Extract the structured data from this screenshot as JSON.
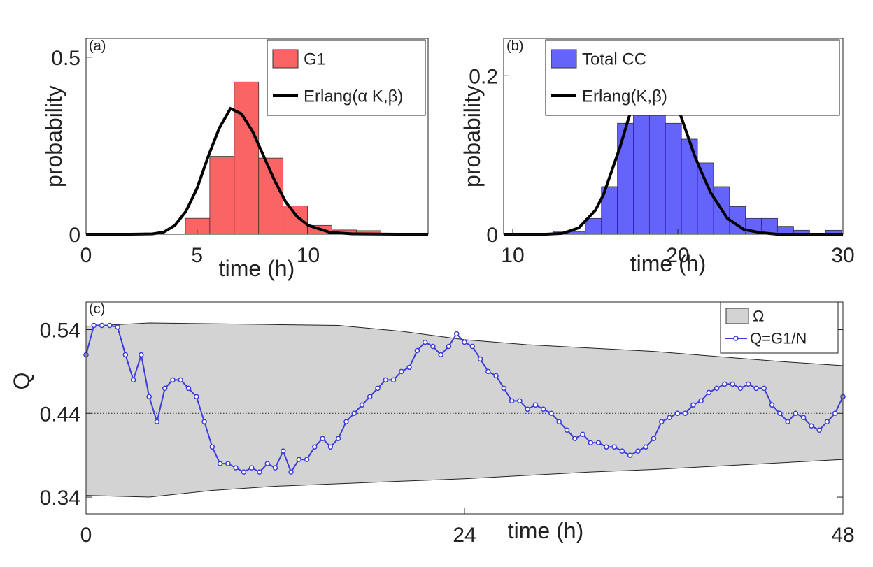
{
  "chart_data": [
    {
      "type": "histogram",
      "panel_label": "(a)",
      "xlabel": "time (h)",
      "ylabel": "probability",
      "xlim": [
        0,
        15.4
      ],
      "ylim": [
        0,
        0.553
      ],
      "xticks": [
        0,
        5,
        10
      ],
      "yticks": [
        0,
        0.5
      ],
      "name": "G1",
      "color": "#fa6464",
      "bins": [
        4.47,
        5.57,
        6.67,
        7.77,
        8.87,
        9.97,
        11.07,
        12.17,
        13.27
      ],
      "values": [
        0.045,
        0.22,
        0.43,
        0.215,
        0.08,
        0.025,
        0.012,
        0.01
      ],
      "fit": {
        "name": "Erlang(α K,β)",
        "color": "#000000",
        "x": [
          0,
          1,
          2,
          3,
          3.5,
          4,
          4.5,
          5,
          5.5,
          6,
          6.5,
          7,
          7.5,
          8,
          8.5,
          9,
          9.5,
          10,
          11,
          12,
          14,
          15.4
        ],
        "values": [
          0,
          0,
          0,
          0.001,
          0.006,
          0.025,
          0.065,
          0.13,
          0.22,
          0.3,
          0.355,
          0.34,
          0.29,
          0.22,
          0.15,
          0.09,
          0.05,
          0.025,
          0.005,
          0.001,
          0,
          0
        ]
      },
      "legend": "upper right"
    },
    {
      "type": "histogram",
      "panel_label": "(b)",
      "xlabel": "time (h)",
      "ylabel": "probability",
      "xlim": [
        9.45,
        30
      ],
      "ylim": [
        0,
        0.247
      ],
      "xticks": [
        10,
        20,
        30
      ],
      "yticks": [
        0,
        0.2
      ],
      "name": "Total CC",
      "color": "#6464fa",
      "bins": [
        12.46,
        13.43,
        14.4,
        15.37,
        16.34,
        17.31,
        18.28,
        19.25,
        20.22,
        21.19,
        22.16,
        23.13,
        24.1,
        25.07,
        26.04,
        27.01,
        27.98,
        28.95,
        29.92
      ],
      "values": [
        0.004,
        0.003,
        0.02,
        0.06,
        0.14,
        0.185,
        0.17,
        0.14,
        0.12,
        0.09,
        0.06,
        0.035,
        0.02,
        0.02,
        0.01,
        0.005,
        0,
        0.005
      ],
      "fit": {
        "name": "Erlang(K,β)",
        "color": "#000000",
        "x": [
          9.45,
          11,
          12,
          13,
          14,
          15,
          15.5,
          16,
          16.5,
          17,
          17.5,
          18,
          18.5,
          19,
          19.5,
          20,
          20.5,
          21,
          21.5,
          22,
          23,
          24,
          25,
          26,
          28,
          30
        ],
        "values": [
          0,
          0,
          0,
          0.001,
          0.008,
          0.03,
          0.05,
          0.08,
          0.11,
          0.145,
          0.175,
          0.197,
          0.205,
          0.2,
          0.185,
          0.16,
          0.13,
          0.1,
          0.075,
          0.052,
          0.02,
          0.006,
          0.002,
          0,
          0,
          0
        ]
      },
      "legend": "upper right"
    },
    {
      "type": "line",
      "panel_label": "(c)",
      "xlabel": "time (h)",
      "ylabel": "Q",
      "xlim": [
        0,
        48
      ],
      "ylim": [
        0.32,
        0.573
      ],
      "xticks": [
        0,
        24,
        48
      ],
      "yticks": [
        0.34,
        0.44,
        0.54
      ],
      "reference_line": 0.44,
      "band": {
        "name": "Ω",
        "color": "#d3d3d3",
        "x": [
          0,
          4,
          8,
          12,
          16,
          20,
          24,
          28,
          32,
          36,
          40,
          44,
          48
        ],
        "upper": [
          0.544,
          0.548,
          0.547,
          0.546,
          0.545,
          0.538,
          0.528,
          0.522,
          0.518,
          0.514,
          0.508,
          0.502,
          0.497
        ],
        "lower": [
          0.342,
          0.34,
          0.348,
          0.353,
          0.356,
          0.359,
          0.362,
          0.366,
          0.37,
          0.373,
          0.377,
          0.381,
          0.385
        ]
      },
      "series": [
        {
          "name": "Q=G1/N",
          "color": "#3c3cdc",
          "x": [
            0,
            0.5,
            1,
            1.5,
            2,
            2.5,
            3,
            3.5,
            4,
            4.5,
            5,
            5.5,
            6,
            6.5,
            7,
            7.5,
            8,
            8.5,
            9,
            9.5,
            10,
            10.5,
            11,
            11.5,
            12,
            12.5,
            13,
            13.5,
            14,
            14.5,
            15,
            15.5,
            16,
            16.5,
            17,
            17.5,
            18,
            18.5,
            19,
            19.5,
            20,
            20.5,
            21,
            21.5,
            22,
            22.5,
            23,
            23.5,
            24,
            24.5,
            25,
            25.5,
            26,
            26.5,
            27,
            27.5,
            28,
            28.5,
            29,
            29.5,
            30,
            30.5,
            31,
            31.5,
            32,
            32.5,
            33,
            33.5,
            34,
            34.5,
            35,
            35.5,
            36,
            36.5,
            37,
            37.5,
            38,
            38.5,
            39,
            39.5,
            40,
            40.5,
            41,
            41.5,
            42,
            42.5,
            43,
            43.5,
            44,
            44.5,
            45,
            45.5,
            46,
            46.5,
            47,
            47.5,
            48
          ],
          "values": [
            0.51,
            0.545,
            0.545,
            0.545,
            0.543,
            0.51,
            0.48,
            0.51,
            0.46,
            0.43,
            0.47,
            0.48,
            0.48,
            0.47,
            0.46,
            0.43,
            0.4,
            0.38,
            0.38,
            0.375,
            0.37,
            0.375,
            0.37,
            0.38,
            0.375,
            0.395,
            0.37,
            0.385,
            0.385,
            0.4,
            0.41,
            0.4,
            0.41,
            0.43,
            0.44,
            0.45,
            0.46,
            0.47,
            0.48,
            0.48,
            0.49,
            0.495,
            0.515,
            0.525,
            0.52,
            0.51,
            0.52,
            0.535,
            0.525,
            0.52,
            0.505,
            0.49,
            0.485,
            0.47,
            0.455,
            0.455,
            0.445,
            0.45,
            0.445,
            0.44,
            0.43,
            0.42,
            0.41,
            0.415,
            0.405,
            0.405,
            0.4,
            0.4,
            0.395,
            0.39,
            0.395,
            0.4,
            0.41,
            0.43,
            0.435,
            0.44,
            0.44,
            0.45,
            0.455,
            0.465,
            0.47,
            0.475,
            0.475,
            0.47,
            0.475,
            0.47,
            0.47,
            0.45,
            0.44,
            0.43,
            0.44,
            0.435,
            0.425,
            0.42,
            0.43,
            0.44,
            0.46
          ]
        }
      ],
      "legend": "upper right"
    }
  ]
}
